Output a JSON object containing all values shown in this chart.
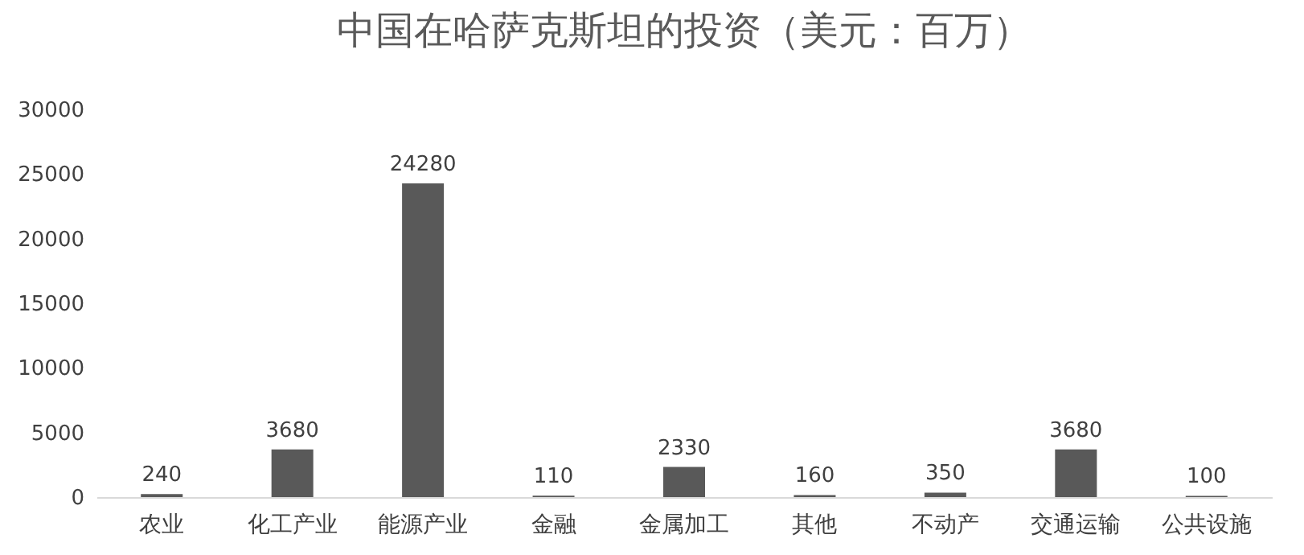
{
  "chart_data": {
    "type": "bar",
    "title": "中国在哈萨克斯坦的投资（美元：百万）",
    "categories": [
      "农业",
      "化工产业",
      "能源产业",
      "金融",
      "金属加工",
      "其他",
      "不动产",
      "交通运输",
      "公共设施"
    ],
    "values": [
      240,
      3680,
      24280,
      110,
      2330,
      160,
      350,
      3680,
      100
    ],
    "color": "#595959",
    "ylim": [
      0,
      30000
    ],
    "yticks": [
      0,
      5000,
      10000,
      15000,
      20000,
      25000,
      30000
    ],
    "grid": false,
    "data_labels": true
  }
}
